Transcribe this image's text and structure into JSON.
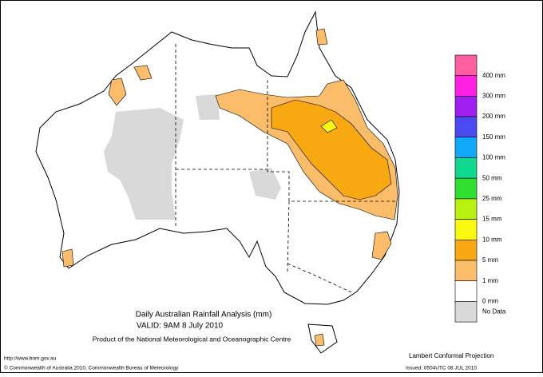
{
  "title": "Daily Australian Rainfall Analysis (mm)",
  "valid": "VALID: 9AM  8 July 2010",
  "product": "Product of the National Meteorological and Oceanographic Centre",
  "legend": {
    "colors": [
      "#ff5fa0",
      "#ff1fe0",
      "#a01ff0",
      "#4a4af0",
      "#10a8f8",
      "#10d890",
      "#30e030",
      "#b8f010",
      "#f8f810",
      "#f8a810",
      "#fcbd6a",
      "#ffffff",
      "#d9d9d9"
    ],
    "labels": [
      "400 mm",
      "300 mm",
      "200 mm",
      "150 mm",
      "100 mm",
      "50 mm",
      "25 mm",
      "15 mm",
      "10 mm",
      "5 mm",
      "1 mm",
      "0 mm",
      "No Data"
    ]
  },
  "url": "http://www.bom.gov.au",
  "copyright": "© Commonwealth of Australia 2010, Commonwealth Bureau of Meteorology",
  "projection": "Lambert Conformal Projection",
  "issued": "Issued: 0504UTC 08 JUL 2010"
}
